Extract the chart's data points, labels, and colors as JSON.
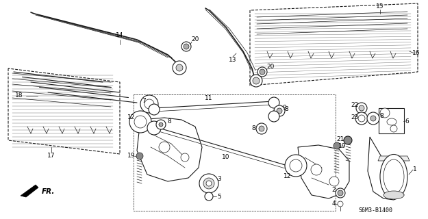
{
  "background_color": "#ffffff",
  "line_color": "#1a1a1a",
  "diagram_code": "S6M3-B1400",
  "figsize": [
    6.25,
    3.2
  ],
  "dpi": 100
}
